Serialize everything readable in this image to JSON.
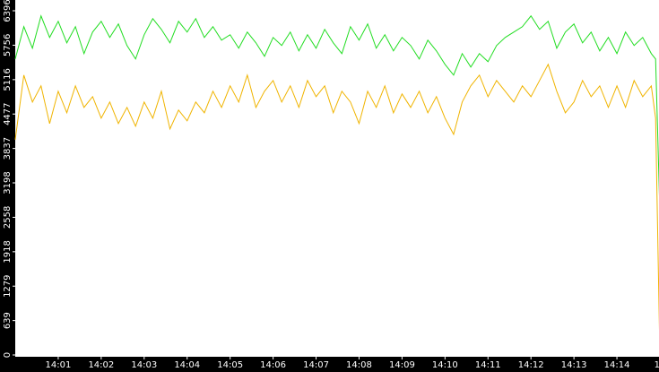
{
  "chart_data": {
    "type": "line",
    "x": [
      0,
      0.2,
      0.4,
      0.6,
      0.8,
      1,
      1.2,
      1.4,
      1.6,
      1.8,
      2,
      2.2,
      2.4,
      2.6,
      2.8,
      3,
      3.2,
      3.4,
      3.6,
      3.8,
      4,
      4.2,
      4.4,
      4.6,
      4.8,
      5,
      5.2,
      5.4,
      5.6,
      5.8,
      6,
      6.2,
      6.4,
      6.6,
      6.8,
      7,
      7.2,
      7.4,
      7.6,
      7.8,
      8,
      8.2,
      8.4,
      8.6,
      8.8,
      9,
      9.2,
      9.4,
      9.6,
      9.8,
      10,
      10.2,
      10.4,
      10.6,
      10.8,
      11,
      11.2,
      11.4,
      11.6,
      11.8,
      12,
      12.2,
      12.4,
      12.6,
      12.8,
      13,
      13.2,
      13.4,
      13.6,
      13.8,
      14,
      14.2,
      14.4,
      14.6,
      14.8,
      14.9,
      15
    ],
    "series": [
      {
        "color": "#22dd22",
        "values": [
          5500,
          6100,
          5700,
          6300,
          5900,
          6200,
          5800,
          6100,
          5600,
          6000,
          6200,
          5900,
          6150,
          5750,
          5500,
          5950,
          6250,
          6050,
          5800,
          6200,
          6000,
          6250,
          5900,
          6100,
          5850,
          5950,
          5700,
          6000,
          5800,
          5550,
          5900,
          5750,
          6000,
          5650,
          5950,
          5700,
          6050,
          5800,
          5600,
          6100,
          5850,
          6150,
          5700,
          5950,
          5650,
          5900,
          5750,
          5500,
          5850,
          5650,
          5400,
          5200,
          5600,
          5350,
          5600,
          5450,
          5750,
          5900,
          6000,
          6100,
          6300,
          6050,
          6200,
          5700,
          6000,
          6150,
          5800,
          6000,
          5650,
          5900,
          5600,
          6000,
          5750,
          5900,
          5600,
          5500,
          2650
        ]
      },
      {
        "color": "#f0b400",
        "values": [
          4000,
          5200,
          4700,
          5000,
          4300,
          4900,
          4500,
          5000,
          4600,
          4800,
          4400,
          4700,
          4300,
          4600,
          4250,
          4700,
          4400,
          4900,
          4200,
          4550,
          4350,
          4700,
          4500,
          4900,
          4600,
          5000,
          4700,
          5200,
          4600,
          4900,
          5100,
          4700,
          5000,
          4600,
          5100,
          4800,
          5000,
          4500,
          4900,
          4700,
          4300,
          4900,
          4600,
          5000,
          4500,
          4850,
          4600,
          4900,
          4500,
          4800,
          4400,
          4100,
          4700,
          5000,
          5200,
          4800,
          5100,
          4900,
          4700,
          5000,
          4800,
          5100,
          5400,
          4900,
          4500,
          4700,
          5100,
          4800,
          5000,
          4600,
          5000,
          4600,
          5100,
          4800,
          5000,
          4400,
          0
        ]
      }
    ],
    "xlim": [
      0,
      15
    ],
    "xticks": [
      {
        "value": 1,
        "label": "14:01"
      },
      {
        "value": 2,
        "label": "14:02"
      },
      {
        "value": 3,
        "label": "14:03"
      },
      {
        "value": 4,
        "label": "14:04"
      },
      {
        "value": 5,
        "label": "14:05"
      },
      {
        "value": 6,
        "label": "14:06"
      },
      {
        "value": 7,
        "label": "14:07"
      },
      {
        "value": 8,
        "label": "14:08"
      },
      {
        "value": 9,
        "label": "14:09"
      },
      {
        "value": 10,
        "label": "14:10"
      },
      {
        "value": 11,
        "label": "14:11"
      },
      {
        "value": 12,
        "label": "14:12"
      },
      {
        "value": 13,
        "label": "14:13"
      },
      {
        "value": 14,
        "label": "14:14"
      },
      {
        "value": 15,
        "label": "14"
      }
    ],
    "ylim": [
      0,
      6396
    ],
    "yticks": [
      0,
      639,
      1279,
      1918,
      2558,
      3198,
      3837,
      4477,
      5116,
      5756,
      6396
    ]
  }
}
